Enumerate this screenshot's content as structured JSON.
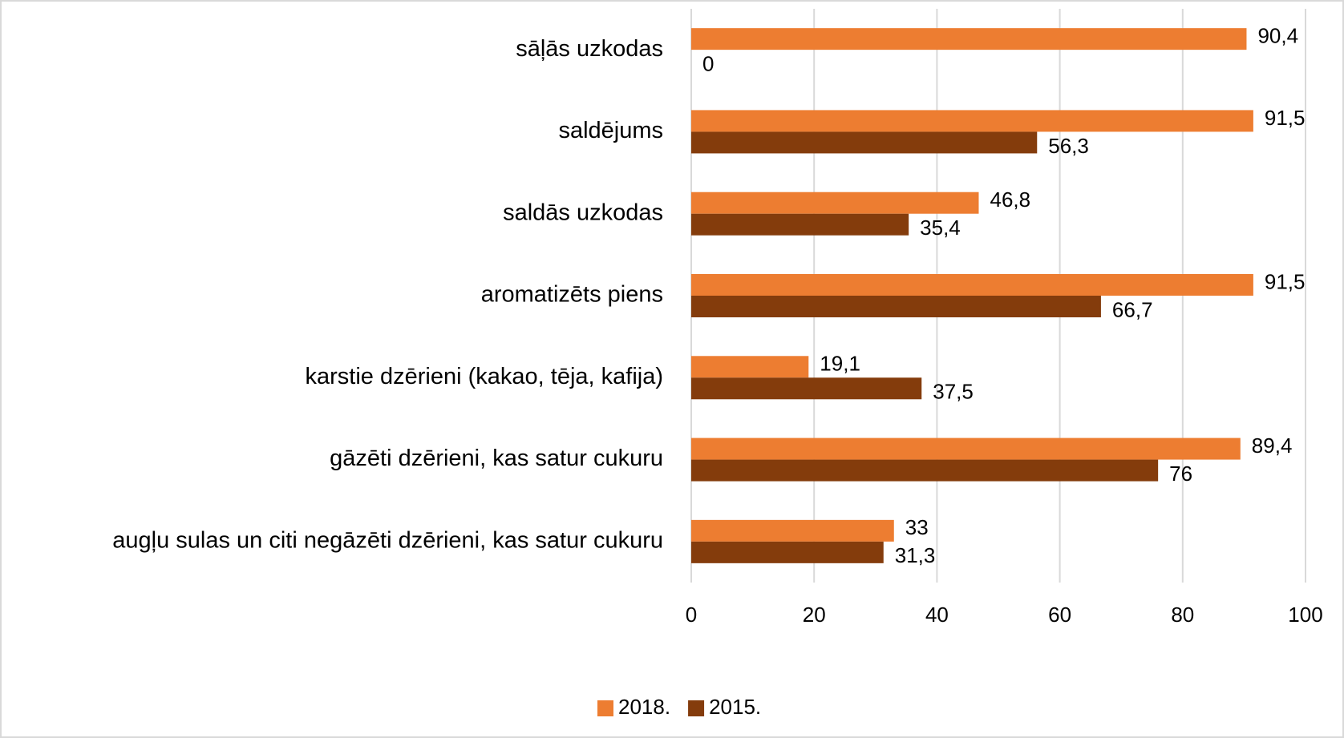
{
  "chart_data": {
    "type": "hbar",
    "categories": [
      "sāļās uzkodas",
      "saldējums",
      "saldās uzkodas",
      "aromatizēts piens",
      "karstie dzērieni (kakao, tēja, kafija)",
      "gāzēti dzērieni, kas satur cukuru",
      "augļu sulas un citi negāzēti dzērieni, kas satur cukuru"
    ],
    "series": [
      {
        "name": "2018.",
        "color": "#ED7D31",
        "values": [
          90.4,
          91.5,
          46.8,
          91.5,
          19.1,
          89.4,
          33
        ],
        "value_labels": [
          "90,4",
          "91,5",
          "46,8",
          "91,5",
          "19,1",
          "89,4",
          "33"
        ]
      },
      {
        "name": "2015.",
        "color": "#843C0C",
        "values": [
          0,
          56.3,
          35.4,
          66.7,
          37.5,
          76,
          31.3
        ],
        "value_labels": [
          "0",
          "56,3",
          "35,4",
          "66,7",
          "37,5",
          "76",
          "31,3"
        ]
      }
    ],
    "xlim": [
      0,
      100
    ],
    "xticks": [
      0,
      20,
      40,
      60,
      80,
      100
    ],
    "grid": true,
    "legend": "bottom"
  }
}
